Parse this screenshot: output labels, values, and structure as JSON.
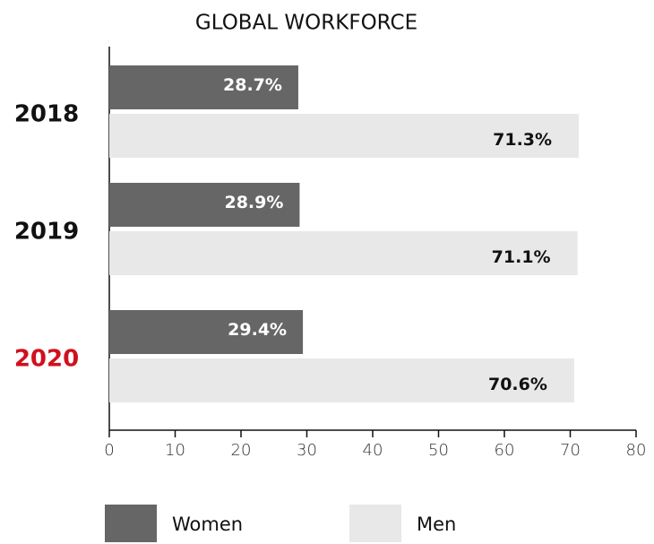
{
  "chart_data": {
    "type": "hbar_grouped",
    "title": "GLOBAL WORKFORCE",
    "categories": [
      "2018",
      "2019",
      "2020"
    ],
    "category_colors": [
      "#111111",
      "#111111",
      "#d0101e"
    ],
    "series": [
      {
        "name": "Women",
        "color": "#666666",
        "values": [
          28.7,
          28.9,
          29.4
        ],
        "value_labels": [
          "28.7%",
          "28.9%",
          "29.4%"
        ],
        "label_color": "#ffffff"
      },
      {
        "name": "Men",
        "color": "#e8e8e8",
        "values": [
          71.3,
          71.1,
          70.6
        ],
        "value_labels": [
          "71.3%",
          "71.1%",
          "70.6%"
        ],
        "label_color": "#111111"
      }
    ],
    "xlim": [
      0,
      80
    ],
    "xticks": [
      0,
      10,
      20,
      30,
      40,
      50,
      60,
      70,
      80
    ]
  }
}
